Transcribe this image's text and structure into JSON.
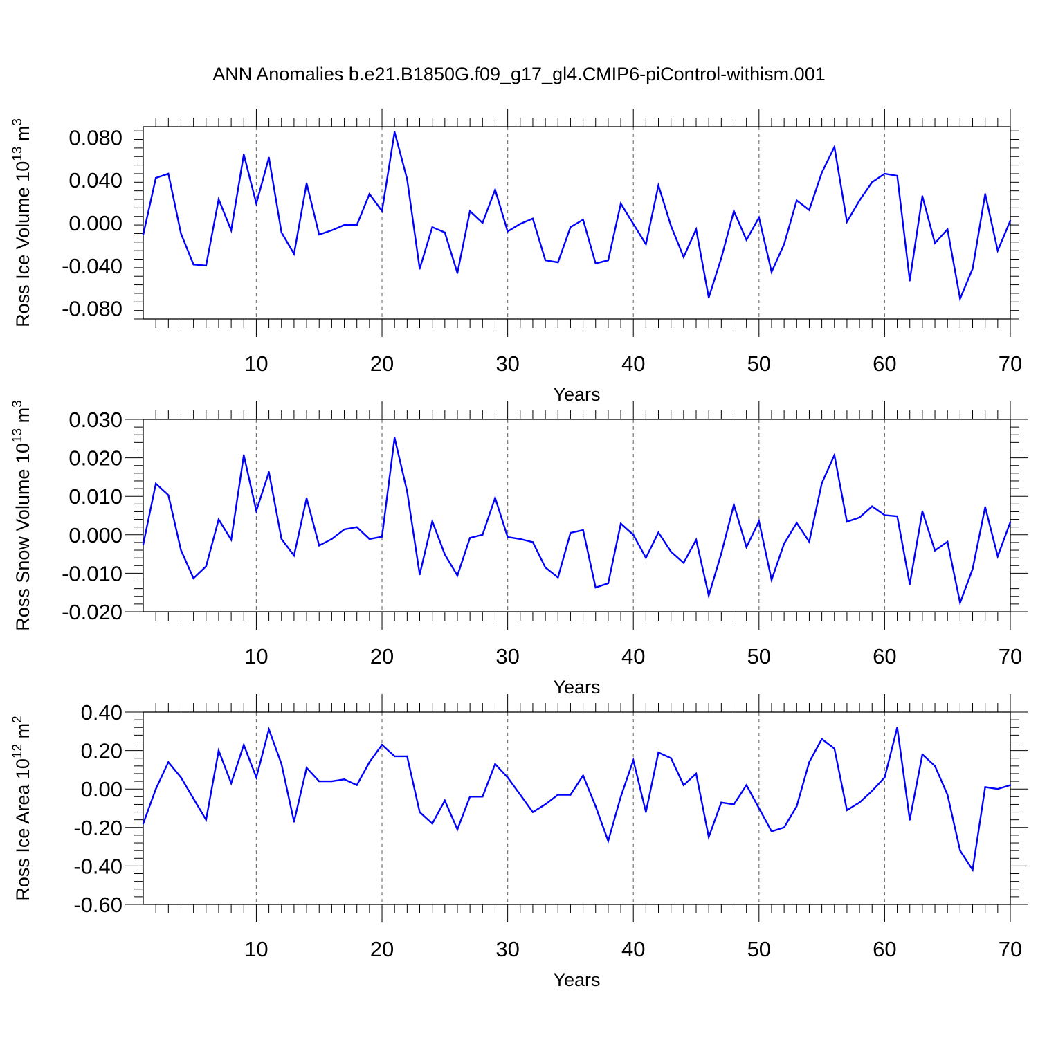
{
  "title": "ANN Anomalies b.e21.B1850G.f09_g17_gl4.CMIP6-piControl-withism.001",
  "line_color": "#0000ff",
  "chart_data": [
    {
      "type": "line",
      "ylabel": "Ross Ice Volume 10",
      "ylabel_exp": "13",
      "ylabel_unit": "m",
      "ylabel_unit_exp": "3",
      "xlabel": "Years",
      "xlim": [
        1,
        70
      ],
      "ylim": [
        -0.09,
        0.09
      ],
      "yticks": [
        -0.08,
        -0.04,
        0.0,
        0.04,
        0.08
      ],
      "ytick_labels": [
        "-0.080",
        "-0.040",
        "0.000",
        "0.040",
        "0.080"
      ],
      "xticks": [
        10,
        20,
        30,
        40,
        50,
        60,
        70
      ],
      "xtick_labels": [
        "10",
        "20",
        "30",
        "40",
        "50",
        "60",
        "70"
      ],
      "x": [
        1,
        2,
        3,
        4,
        5,
        6,
        7,
        8,
        9,
        10,
        11,
        12,
        13,
        14,
        15,
        16,
        17,
        18,
        19,
        20,
        21,
        22,
        23,
        24,
        25,
        26,
        27,
        28,
        29,
        30,
        31,
        32,
        33,
        34,
        35,
        36,
        37,
        38,
        39,
        40,
        41,
        42,
        43,
        44,
        45,
        46,
        47,
        48,
        49,
        50,
        51,
        52,
        53,
        54,
        55,
        56,
        57,
        58,
        59,
        60,
        61,
        62,
        63,
        64,
        65,
        66,
        67,
        68,
        69,
        70
      ],
      "values": [
        -0.011,
        0.042,
        0.046,
        -0.01,
        -0.039,
        -0.04,
        0.022,
        -0.007,
        0.064,
        0.018,
        0.061,
        -0.009,
        -0.029,
        0.037,
        -0.011,
        -0.007,
        -0.002,
        -0.002,
        0.027,
        0.011,
        0.085,
        0.041,
        -0.043,
        -0.004,
        -0.009,
        -0.047,
        0.011,
        0.0,
        0.031,
        -0.008,
        -0.001,
        0.004,
        -0.035,
        -0.037,
        -0.004,
        0.003,
        -0.038,
        -0.035,
        0.018,
        -0.001,
        -0.02,
        0.035,
        -0.003,
        -0.032,
        -0.006,
        -0.07,
        -0.033,
        0.011,
        -0.016,
        0.005,
        -0.046,
        -0.02,
        0.021,
        0.012,
        0.047,
        0.071,
        0.001,
        0.021,
        0.038,
        0.046,
        0.044,
        -0.054,
        0.025,
        -0.019,
        -0.006,
        -0.071,
        -0.043,
        0.027,
        -0.026,
        0.002
      ]
    },
    {
      "type": "line",
      "ylabel": "Ross Snow Volume 10",
      "ylabel_exp": "13",
      "ylabel_unit": "m",
      "ylabel_unit_exp": "3",
      "xlabel": "Years",
      "xlim": [
        1,
        70
      ],
      "ylim": [
        -0.02,
        0.03
      ],
      "yticks": [
        -0.02,
        -0.01,
        0.0,
        0.01,
        0.02,
        0.03
      ],
      "ytick_labels": [
        "-0.020",
        "-0.010",
        "0.000",
        "0.010",
        "0.020",
        "0.030"
      ],
      "xticks": [
        10,
        20,
        30,
        40,
        50,
        60,
        70
      ],
      "xtick_labels": [
        "10",
        "20",
        "30",
        "40",
        "50",
        "60",
        "70"
      ],
      "x": [
        1,
        2,
        3,
        4,
        5,
        6,
        7,
        8,
        9,
        10,
        11,
        12,
        13,
        14,
        15,
        16,
        17,
        18,
        19,
        20,
        21,
        22,
        23,
        24,
        25,
        26,
        27,
        28,
        29,
        30,
        31,
        32,
        33,
        34,
        35,
        36,
        37,
        38,
        39,
        40,
        41,
        42,
        43,
        44,
        45,
        46,
        47,
        48,
        49,
        50,
        51,
        52,
        53,
        54,
        55,
        56,
        57,
        58,
        59,
        60,
        61,
        62,
        63,
        64,
        65,
        66,
        67,
        68,
        69,
        70
      ],
      "values": [
        -0.0025,
        0.0133,
        0.0103,
        -0.004,
        -0.0113,
        -0.0082,
        0.004,
        -0.0013,
        0.0207,
        0.0062,
        0.0163,
        -0.0011,
        -0.0054,
        0.0095,
        -0.0028,
        -0.0011,
        0.0014,
        0.002,
        -0.0011,
        -0.0005,
        0.0252,
        0.0113,
        -0.0103,
        0.0035,
        -0.0051,
        -0.0106,
        -0.0008,
        0.0,
        0.0096,
        -0.0006,
        -0.0011,
        -0.0019,
        -0.0085,
        -0.0111,
        0.0005,
        0.0012,
        -0.0137,
        -0.0126,
        0.0029,
        0.0,
        -0.006,
        0.0006,
        -0.0044,
        -0.0073,
        -0.0013,
        -0.0158,
        -0.0049,
        0.0078,
        -0.0032,
        0.0035,
        -0.0117,
        -0.0023,
        0.0031,
        -0.0018,
        0.0134,
        0.0207,
        0.0034,
        0.0045,
        0.0074,
        0.0051,
        0.0048,
        -0.0128,
        0.0061,
        -0.0041,
        -0.0018,
        -0.0177,
        -0.0089,
        0.0072,
        -0.0056,
        0.0033
      ]
    },
    {
      "type": "line",
      "ylabel": "Ross Ice Area 10",
      "ylabel_exp": "12",
      "ylabel_unit": "m",
      "ylabel_unit_exp": "2",
      "xlabel": "Years",
      "xlim": [
        1,
        70
      ],
      "ylim": [
        -0.6,
        0.4
      ],
      "yticks": [
        -0.6,
        -0.4,
        -0.2,
        0.0,
        0.2,
        0.4
      ],
      "ytick_labels": [
        "-0.60",
        "-0.40",
        "-0.20",
        "0.00",
        "0.20",
        "0.40"
      ],
      "xticks": [
        10,
        20,
        30,
        40,
        50,
        60,
        70
      ],
      "xtick_labels": [
        "10",
        "20",
        "30",
        "40",
        "50",
        "60",
        "70"
      ],
      "x": [
        1,
        2,
        3,
        4,
        5,
        6,
        7,
        8,
        9,
        10,
        11,
        12,
        13,
        14,
        15,
        16,
        17,
        18,
        19,
        20,
        21,
        22,
        23,
        24,
        25,
        26,
        27,
        28,
        29,
        30,
        31,
        32,
        33,
        34,
        35,
        36,
        37,
        38,
        39,
        40,
        41,
        42,
        43,
        44,
        45,
        46,
        47,
        48,
        49,
        50,
        51,
        52,
        53,
        54,
        55,
        56,
        57,
        58,
        59,
        60,
        61,
        62,
        63,
        64,
        65,
        66,
        67,
        68,
        69,
        70
      ],
      "values": [
        -0.18,
        0.0,
        0.14,
        0.06,
        -0.05,
        -0.16,
        0.2,
        0.03,
        0.23,
        0.06,
        0.31,
        0.13,
        -0.17,
        0.11,
        0.04,
        0.04,
        0.05,
        0.02,
        0.14,
        0.23,
        0.17,
        0.17,
        -0.12,
        -0.18,
        -0.06,
        -0.21,
        -0.04,
        -0.04,
        0.13,
        0.06,
        -0.03,
        -0.12,
        -0.08,
        -0.03,
        -0.03,
        0.07,
        -0.09,
        -0.27,
        -0.04,
        0.15,
        -0.12,
        0.19,
        0.16,
        0.02,
        0.08,
        -0.25,
        -0.07,
        -0.08,
        0.02,
        -0.1,
        -0.22,
        -0.2,
        -0.09,
        0.14,
        0.26,
        0.21,
        -0.11,
        -0.07,
        -0.01,
        0.06,
        0.32,
        -0.16,
        0.18,
        0.12,
        -0.03,
        -0.32,
        -0.42,
        0.01,
        0.0,
        0.02
      ]
    }
  ]
}
